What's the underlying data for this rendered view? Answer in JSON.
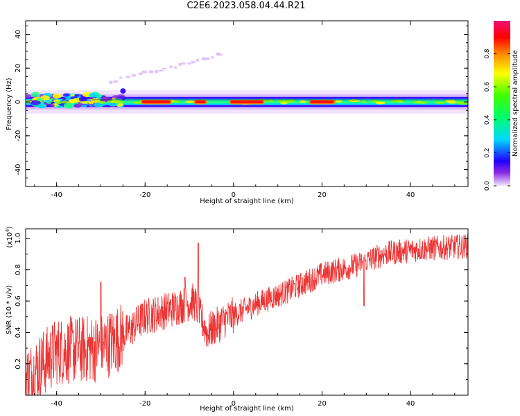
{
  "title": "C2E6.2023.058.04.44.R21",
  "chart_data": [
    {
      "type": "heatmap",
      "xlabel": "Height of straight line (km)",
      "ylabel": "Frequency (Hz)",
      "xlim": [
        -47,
        53
      ],
      "ylim": [
        -50,
        48
      ],
      "xticks": [
        "-40",
        "-20",
        "0",
        "20",
        "40"
      ],
      "yticks": [
        "-40",
        "-20",
        "0",
        "20",
        "40"
      ],
      "colorbar": {
        "label": "Normalized spectral amplitude",
        "range": [
          0,
          1
        ],
        "ticks": [
          "0.0",
          "0.2",
          "0.4",
          "0.6",
          "0.8"
        ]
      },
      "band": {
        "center_hz": 0,
        "halfwidth_hz": 3,
        "strong_segments_km": [
          [
            -21,
            -14
          ],
          [
            -9,
            -6
          ],
          [
            -1,
            7
          ],
          [
            17,
            23
          ]
        ]
      },
      "streak": [
        [
          -28,
          12
        ],
        [
          -20,
          17
        ],
        [
          -13,
          21
        ],
        [
          -7,
          25
        ],
        [
          -2,
          29
        ]
      ]
    },
    {
      "type": "line",
      "xlabel": "Height of straight line (km)",
      "ylabel": "SNR (10 * v/v)",
      "y_exponent": "(x10",
      "y_exponent_power": "4",
      "xlim": [
        -47,
        53
      ],
      "ylim": [
        0.0,
        1.06
      ],
      "xticks": [
        "-40",
        "-20",
        "0",
        "20",
        "40"
      ],
      "yticks": [
        "0.2",
        "0.4",
        "0.6",
        "0.8",
        "1.0"
      ],
      "color": "#ee3333",
      "trend_points": [
        [
          -47,
          0.1
        ],
        [
          -40,
          0.28
        ],
        [
          -30,
          0.3
        ],
        [
          -25,
          0.38
        ],
        [
          -20,
          0.5
        ],
        [
          -14,
          0.55
        ],
        [
          -9,
          0.6
        ],
        [
          -6,
          0.4
        ],
        [
          -2,
          0.48
        ],
        [
          5,
          0.58
        ],
        [
          12,
          0.66
        ],
        [
          20,
          0.77
        ],
        [
          28,
          0.83
        ],
        [
          34,
          0.9
        ],
        [
          42,
          0.93
        ],
        [
          53,
          0.95
        ]
      ],
      "spikes": [
        [
          -30,
          0.72
        ],
        [
          -8,
          0.97
        ],
        [
          -11,
          0.75
        ],
        [
          29.5,
          0.57
        ]
      ]
    }
  ],
  "colors": {
    "signal": "#ee3333",
    "axis": "#000000"
  }
}
